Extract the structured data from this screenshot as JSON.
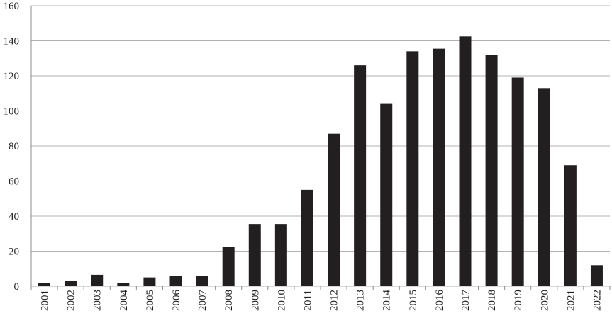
{
  "chart_data": {
    "type": "bar",
    "categories": [
      "2001",
      "2002",
      "2003",
      "2004",
      "2005",
      "2006",
      "2007",
      "2008",
      "2009",
      "2010",
      "2011",
      "2012",
      "2013",
      "2014",
      "2015",
      "2016",
      "2017",
      "2018",
      "2019",
      "2020",
      "2021",
      "2022"
    ],
    "values": [
      2,
      3,
      6.5,
      2,
      5,
      6,
      6,
      22.5,
      35.5,
      35.5,
      55,
      87,
      126,
      104,
      134,
      135.5,
      142.5,
      132,
      119,
      113,
      69,
      12
    ],
    "color": "#231f20",
    "ylim": [
      0,
      160
    ],
    "yticks": [
      0,
      20,
      40,
      60,
      80,
      100,
      120,
      140,
      160
    ],
    "grid": true
  }
}
